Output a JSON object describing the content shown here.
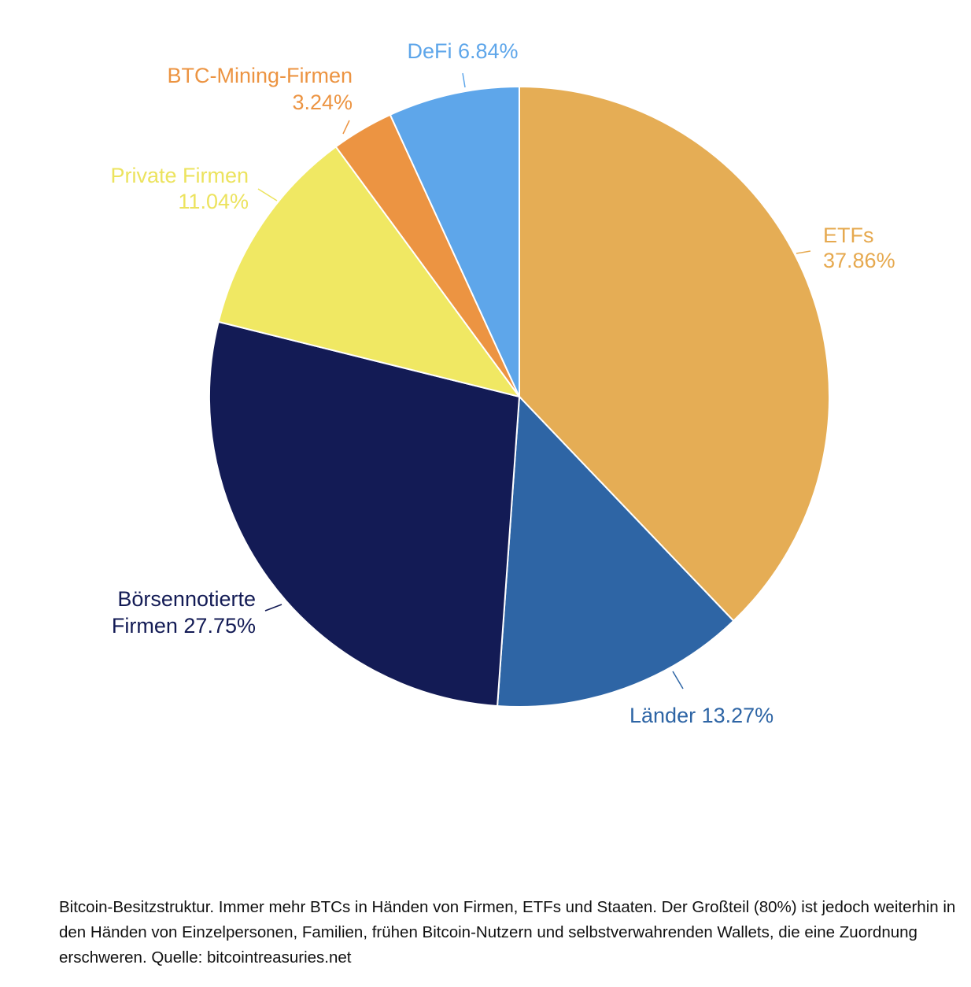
{
  "chart_data": {
    "type": "pie",
    "start_angle_deg": 0,
    "direction": "clockwise",
    "slices": [
      {
        "name": "ETFs",
        "value": 37.86,
        "display": "37.86%",
        "color": "#e5ad55",
        "label_color": "#e6a94f",
        "label_lines": [
          "ETFs",
          "37.86%"
        ]
      },
      {
        "name": "Länder",
        "value": 13.27,
        "display": "13.27%",
        "color": "#2e65a5",
        "label_color": "#2e65a5",
        "label_lines": [
          "Länder 13.27%"
        ]
      },
      {
        "name": "Börsennotierte Firmen",
        "value": 27.75,
        "display": "27.75%",
        "color": "#131b55",
        "label_color": "#131b55",
        "label_lines": [
          "Börsennotierte",
          "Firmen 27.75%"
        ]
      },
      {
        "name": "Private Firmen",
        "value": 11.04,
        "display": "11.04%",
        "color": "#f0e863",
        "label_color": "#ece35e",
        "label_lines": [
          "Private Firmen",
          "11.04%"
        ]
      },
      {
        "name": "BTC-Mining-Firmen",
        "value": 3.24,
        "display": "3.24%",
        "color": "#ec9442",
        "label_color": "#ec9442",
        "label_lines": [
          "BTC-Mining-Firmen",
          "3.24%"
        ]
      },
      {
        "name": "DeFi",
        "value": 6.84,
        "display": "6.84%",
        "color": "#5ea6ea",
        "label_color": "#5ea6ea",
        "label_lines": [
          "DeFi 6.84%"
        ]
      }
    ]
  },
  "caption": "Bitcoin-Besitzstruktur. Immer mehr BTCs in Händen von Firmen, ETFs und Staaten. Der Großteil (80%) ist jedoch weiterhin in den Händen von Einzelpersonen, Familien, frühen Bitcoin-Nutzern und selbstverwahrenden Wallets, die eine Zuordnung erschweren. Quelle: bitcointreasuries.net"
}
